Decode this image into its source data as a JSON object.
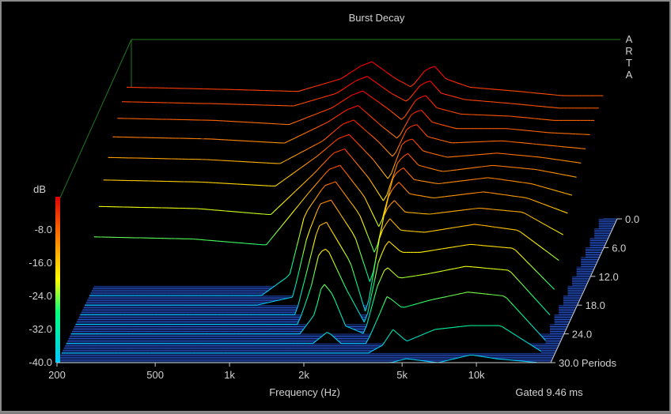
{
  "window": {
    "title": "Burst Decay",
    "logo_letters": [
      "A",
      "R",
      "T",
      "A"
    ],
    "background_color": "#000000",
    "axis_color": "#cfcfcf",
    "frame_color": "#1f7a1f",
    "floor_color": "#2b54c8"
  },
  "chart_data": {
    "type": "waterfall",
    "title": "Burst Decay",
    "xlabel": "Frequency (Hz)",
    "x_scale": "log",
    "xlim": [
      200,
      20000
    ],
    "x_ticks": [
      {
        "value": 200,
        "label": "200"
      },
      {
        "value": 500,
        "label": "500"
      },
      {
        "value": 1000,
        "label": "1k"
      },
      {
        "value": 2000,
        "label": "2k"
      },
      {
        "value": 5000,
        "label": "5k"
      },
      {
        "value": 10000,
        "label": "10k"
      }
    ],
    "zlabel": "dB",
    "zlim": [
      -40,
      0
    ],
    "z_ticks": [
      {
        "value": -8,
        "label": "-8.0"
      },
      {
        "value": -16,
        "label": "-16.0"
      },
      {
        "value": -24,
        "label": "-24.0"
      },
      {
        "value": -32,
        "label": "-32.0"
      },
      {
        "value": -40,
        "label": "-40.0"
      }
    ],
    "depth_label": "Periods",
    "depth_lim": [
      0,
      30
    ],
    "depth_ticks": [
      {
        "value": 0,
        "label": "0.0"
      },
      {
        "value": 6,
        "label": "6.0"
      },
      {
        "value": 12,
        "label": "12.0"
      },
      {
        "value": 18,
        "label": "18.0"
      },
      {
        "value": 24,
        "label": "24.0"
      },
      {
        "value": 30,
        "label": "30.0 Periods"
      }
    ],
    "annotation": "Gated 9.46 ms",
    "colormap": [
      "#00c8ff",
      "#00ff80",
      "#ffff00",
      "#ff8000",
      "#ff0000"
    ],
    "grid": false,
    "legend": "colorbar-left",
    "series": [
      {
        "periods": 0,
        "points": [
          [
            200,
            -9
          ],
          [
            500,
            -9.5
          ],
          [
            1000,
            -10
          ],
          [
            1500,
            -7
          ],
          [
            1800,
            -4
          ],
          [
            2000,
            -3
          ],
          [
            2500,
            -7
          ],
          [
            2900,
            -9
          ],
          [
            3300,
            -5
          ],
          [
            3600,
            -4
          ],
          [
            4000,
            -7
          ],
          [
            5000,
            -9
          ],
          [
            8000,
            -10
          ],
          [
            12000,
            -11
          ],
          [
            18000,
            -11
          ]
        ]
      },
      {
        "periods": 2,
        "points": [
          [
            200,
            -10
          ],
          [
            500,
            -10.5
          ],
          [
            1000,
            -11
          ],
          [
            1500,
            -8
          ],
          [
            1800,
            -5
          ],
          [
            2000,
            -4
          ],
          [
            2500,
            -8
          ],
          [
            2900,
            -10
          ],
          [
            3300,
            -6
          ],
          [
            3600,
            -5
          ],
          [
            4000,
            -8
          ],
          [
            5000,
            -9.5
          ],
          [
            8000,
            -10.5
          ],
          [
            12000,
            -11.5
          ],
          [
            18000,
            -11.5
          ]
        ]
      },
      {
        "periods": 4,
        "points": [
          [
            200,
            -11.5
          ],
          [
            500,
            -12
          ],
          [
            1000,
            -13
          ],
          [
            1500,
            -9
          ],
          [
            1800,
            -6
          ],
          [
            2000,
            -5
          ],
          [
            2500,
            -9
          ],
          [
            2900,
            -12
          ],
          [
            3300,
            -7
          ],
          [
            3600,
            -6
          ],
          [
            4000,
            -9
          ],
          [
            5000,
            -10.5
          ],
          [
            8000,
            -11
          ],
          [
            12000,
            -12
          ],
          [
            18000,
            -12
          ]
        ]
      },
      {
        "periods": 6,
        "points": [
          [
            200,
            -13.5
          ],
          [
            500,
            -14
          ],
          [
            1000,
            -15
          ],
          [
            1500,
            -10
          ],
          [
            1800,
            -7
          ],
          [
            2000,
            -6
          ],
          [
            2500,
            -11
          ],
          [
            2900,
            -14
          ],
          [
            3300,
            -8
          ],
          [
            3600,
            -7
          ],
          [
            4000,
            -10
          ],
          [
            5000,
            -11.5
          ],
          [
            8000,
            -11.5
          ],
          [
            12000,
            -12.5
          ],
          [
            18000,
            -13
          ]
        ]
      },
      {
        "periods": 8,
        "points": [
          [
            200,
            -16
          ],
          [
            500,
            -16.5
          ],
          [
            1000,
            -17.5
          ],
          [
            1500,
            -12
          ],
          [
            1800,
            -8
          ],
          [
            2000,
            -7
          ],
          [
            2500,
            -12
          ],
          [
            2900,
            -16
          ],
          [
            3300,
            -9
          ],
          [
            3600,
            -8
          ],
          [
            4000,
            -11
          ],
          [
            5000,
            -12.5
          ],
          [
            8000,
            -12
          ],
          [
            12000,
            -13
          ],
          [
            18000,
            -14
          ]
        ]
      },
      {
        "periods": 10,
        "points": [
          [
            200,
            -19
          ],
          [
            500,
            -19.5
          ],
          [
            1000,
            -20.5
          ],
          [
            1500,
            -13
          ],
          [
            1800,
            -9
          ],
          [
            2000,
            -8
          ],
          [
            2500,
            -14
          ],
          [
            2900,
            -19
          ],
          [
            3300,
            -10
          ],
          [
            3600,
            -9
          ],
          [
            4000,
            -12
          ],
          [
            5000,
            -13.5
          ],
          [
            8000,
            -12.5
          ],
          [
            12000,
            -13.5
          ],
          [
            18000,
            -15
          ]
        ]
      },
      {
        "periods": 12,
        "points": [
          [
            200,
            -23
          ],
          [
            500,
            -23.5
          ],
          [
            1000,
            -25
          ],
          [
            1500,
            -15
          ],
          [
            1800,
            -10
          ],
          [
            2000,
            -9
          ],
          [
            2500,
            -16
          ],
          [
            2900,
            -22
          ],
          [
            3300,
            -12
          ],
          [
            3600,
            -10
          ],
          [
            4000,
            -13
          ],
          [
            5000,
            -14.5
          ],
          [
            8000,
            -13
          ],
          [
            12000,
            -14
          ],
          [
            18000,
            -16
          ]
        ]
      },
      {
        "periods": 14,
        "points": [
          [
            200,
            -28
          ],
          [
            500,
            -28.5
          ],
          [
            1000,
            -30
          ],
          [
            1500,
            -17
          ],
          [
            1800,
            -11.5
          ],
          [
            2000,
            -10.5
          ],
          [
            2500,
            -18
          ],
          [
            2900,
            -26
          ],
          [
            3300,
            -13
          ],
          [
            3600,
            -11
          ],
          [
            4000,
            -14
          ],
          [
            5000,
            -15
          ],
          [
            8000,
            -13.5
          ],
          [
            12000,
            -15
          ],
          [
            18000,
            -18
          ]
        ]
      },
      {
        "periods": 16,
        "points": [
          [
            200,
            -40
          ],
          [
            500,
            -40
          ],
          [
            1000,
            -40
          ],
          [
            1300,
            -35
          ],
          [
            1500,
            -20
          ],
          [
            1800,
            -13
          ],
          [
            2000,
            -12
          ],
          [
            2500,
            -20
          ],
          [
            2900,
            -30
          ],
          [
            3300,
            -15
          ],
          [
            3600,
            -12
          ],
          [
            4000,
            -15
          ],
          [
            5000,
            -16
          ],
          [
            8000,
            -14.5
          ],
          [
            12000,
            -16
          ],
          [
            18000,
            -20
          ]
        ]
      },
      {
        "periods": 18,
        "points": [
          [
            200,
            -40
          ],
          [
            500,
            -40
          ],
          [
            1000,
            -40
          ],
          [
            1400,
            -38
          ],
          [
            1600,
            -23
          ],
          [
            1800,
            -15
          ],
          [
            2000,
            -14
          ],
          [
            2500,
            -23
          ],
          [
            2900,
            -35
          ],
          [
            3300,
            -17
          ],
          [
            3600,
            -14
          ],
          [
            4000,
            -17
          ],
          [
            5000,
            -17.5
          ],
          [
            8000,
            -16
          ],
          [
            12000,
            -17
          ],
          [
            18000,
            -23
          ]
        ]
      },
      {
        "periods": 20,
        "points": [
          [
            200,
            -40
          ],
          [
            500,
            -40
          ],
          [
            1000,
            -40
          ],
          [
            1500,
            -40
          ],
          [
            1700,
            -27
          ],
          [
            1850,
            -18
          ],
          [
            2000,
            -17
          ],
          [
            2500,
            -27
          ],
          [
            2900,
            -40
          ],
          [
            3300,
            -20
          ],
          [
            3600,
            -16
          ],
          [
            4000,
            -19
          ],
          [
            5000,
            -19.5
          ],
          [
            8000,
            -17.5
          ],
          [
            12000,
            -19
          ],
          [
            18000,
            -27
          ]
        ]
      },
      {
        "periods": 22,
        "points": [
          [
            200,
            -40
          ],
          [
            500,
            -40
          ],
          [
            1000,
            -40
          ],
          [
            1600,
            -40
          ],
          [
            1800,
            -31
          ],
          [
            1950,
            -22
          ],
          [
            2100,
            -21
          ],
          [
            2500,
            -31
          ],
          [
            3000,
            -40
          ],
          [
            3400,
            -24
          ],
          [
            3700,
            -19
          ],
          [
            4200,
            -22
          ],
          [
            5000,
            -22
          ],
          [
            8000,
            -20
          ],
          [
            12000,
            -21
          ],
          [
            18000,
            -32
          ]
        ]
      },
      {
        "periods": 24,
        "points": [
          [
            200,
            -40
          ],
          [
            500,
            -40
          ],
          [
            1000,
            -40
          ],
          [
            1700,
            -40
          ],
          [
            1950,
            -35
          ],
          [
            2100,
            -27
          ],
          [
            2300,
            -30
          ],
          [
            2600,
            -38
          ],
          [
            3100,
            -40
          ],
          [
            3500,
            -28
          ],
          [
            3800,
            -23
          ],
          [
            4300,
            -26
          ],
          [
            5500,
            -25
          ],
          [
            8000,
            -23
          ],
          [
            12000,
            -24
          ],
          [
            18000,
            -36
          ]
        ]
      },
      {
        "periods": 26,
        "points": [
          [
            200,
            -40
          ],
          [
            500,
            -40
          ],
          [
            1000,
            -40
          ],
          [
            2000,
            -40
          ],
          [
            2300,
            -37
          ],
          [
            2600,
            -40
          ],
          [
            3300,
            -40
          ],
          [
            3700,
            -33
          ],
          [
            4000,
            -28
          ],
          [
            4600,
            -31
          ],
          [
            6000,
            -29
          ],
          [
            8500,
            -27
          ],
          [
            12000,
            -28
          ],
          [
            18000,
            -40
          ]
        ]
      },
      {
        "periods": 28,
        "points": [
          [
            200,
            -40
          ],
          [
            500,
            -40
          ],
          [
            1000,
            -40
          ],
          [
            2000,
            -40
          ],
          [
            3500,
            -40
          ],
          [
            4000,
            -38
          ],
          [
            4400,
            -34
          ],
          [
            5000,
            -37
          ],
          [
            6500,
            -34
          ],
          [
            9000,
            -33
          ],
          [
            12000,
            -33
          ],
          [
            18000,
            -40
          ]
        ]
      },
      {
        "periods": 30,
        "points": [
          [
            200,
            -40
          ],
          [
            500,
            -40
          ],
          [
            1000,
            -40
          ],
          [
            2000,
            -40
          ],
          [
            4500,
            -40
          ],
          [
            5200,
            -39
          ],
          [
            7000,
            -40
          ],
          [
            9500,
            -38
          ],
          [
            12000,
            -39
          ],
          [
            18000,
            -40
          ]
        ]
      }
    ]
  }
}
